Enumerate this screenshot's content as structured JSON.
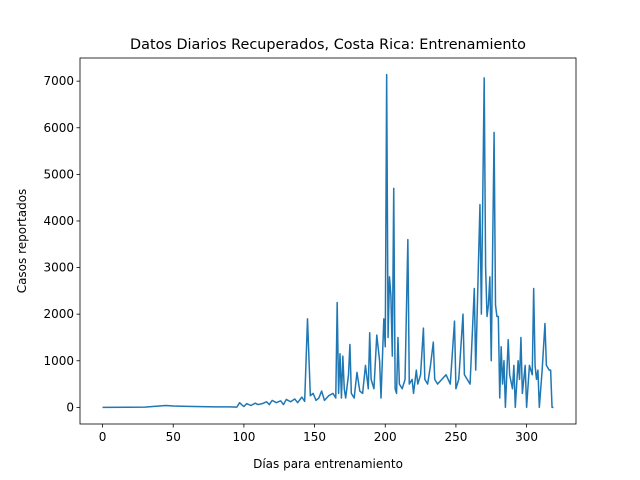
{
  "chart_data": {
    "type": "line",
    "title": "Datos Diarios Recuperados, Costa Rica: Entrenamiento",
    "x_label": "Días para entrenamiento",
    "y_label": "Casos reportados",
    "color": "#1f77b4",
    "x": [
      0,
      30,
      40,
      45,
      50,
      60,
      70,
      80,
      90,
      95,
      97,
      99,
      100,
      102,
      105,
      108,
      110,
      113,
      116,
      118,
      120,
      123,
      126,
      128,
      130,
      133,
      136,
      138,
      141,
      143,
      145,
      147,
      149,
      151,
      153,
      155,
      157,
      160,
      163,
      165,
      166,
      167,
      168,
      169,
      170,
      171,
      172,
      174,
      175,
      176,
      178,
      180,
      182,
      184,
      186,
      188,
      189,
      190,
      192,
      194,
      196,
      197,
      199,
      200,
      201,
      202,
      203,
      204,
      205,
      206,
      207,
      208,
      209,
      210,
      212,
      214,
      216,
      217,
      219,
      220,
      222,
      223,
      225,
      227,
      228,
      230,
      232,
      234,
      235,
      237,
      240,
      243,
      246,
      249,
      250,
      252,
      255,
      256,
      258,
      260,
      263,
      264,
      267,
      268,
      270,
      271,
      272,
      273,
      274,
      275,
      277,
      278,
      279,
      280,
      281,
      282,
      283,
      284,
      285,
      287,
      288,
      290,
      291,
      292,
      294,
      295,
      296,
      297,
      299,
      300,
      302,
      304,
      305,
      306,
      307,
      308,
      309,
      311,
      313,
      314,
      316,
      317,
      318,
      319
    ],
    "values": [
      0,
      5,
      30,
      40,
      30,
      20,
      15,
      10,
      10,
      5,
      100,
      40,
      20,
      80,
      40,
      90,
      60,
      80,
      120,
      60,
      150,
      100,
      140,
      60,
      170,
      120,
      180,
      100,
      220,
      130,
      1900,
      250,
      300,
      150,
      200,
      350,
      150,
      250,
      300,
      200,
      2250,
      300,
      1150,
      200,
      1100,
      400,
      200,
      700,
      1350,
      300,
      200,
      750,
      350,
      300,
      900,
      400,
      1600,
      600,
      400,
      1550,
      1000,
      200,
      1900,
      1300,
      7140,
      1500,
      2800,
      2400,
      1100,
      4700,
      400,
      300,
      1500,
      500,
      400,
      600,
      3600,
      500,
      600,
      300,
      800,
      500,
      700,
      1700,
      600,
      500,
      900,
      1400,
      600,
      500,
      600,
      700,
      500,
      1850,
      400,
      600,
      2000,
      700,
      600,
      500,
      2550,
      800,
      4350,
      2000,
      7070,
      3000,
      1950,
      2200,
      2800,
      1000,
      5900,
      2200,
      1950,
      1950,
      200,
      1300,
      500,
      1000,
      0,
      1450,
      700,
      400,
      900,
      0,
      1000,
      600,
      1500,
      300,
      900,
      0,
      900,
      700,
      2550,
      900,
      600,
      800,
      0,
      800,
      1800,
      900,
      800,
      800,
      0,
      0
    ],
    "xlim": [
      -15.95,
      334.95
    ],
    "ylim": [
      -357,
      7497
    ],
    "xticks": [
      0,
      50,
      100,
      150,
      200,
      250,
      300
    ],
    "yticks": [
      0,
      1000,
      2000,
      3000,
      4000,
      5000,
      6000,
      7000
    ]
  }
}
